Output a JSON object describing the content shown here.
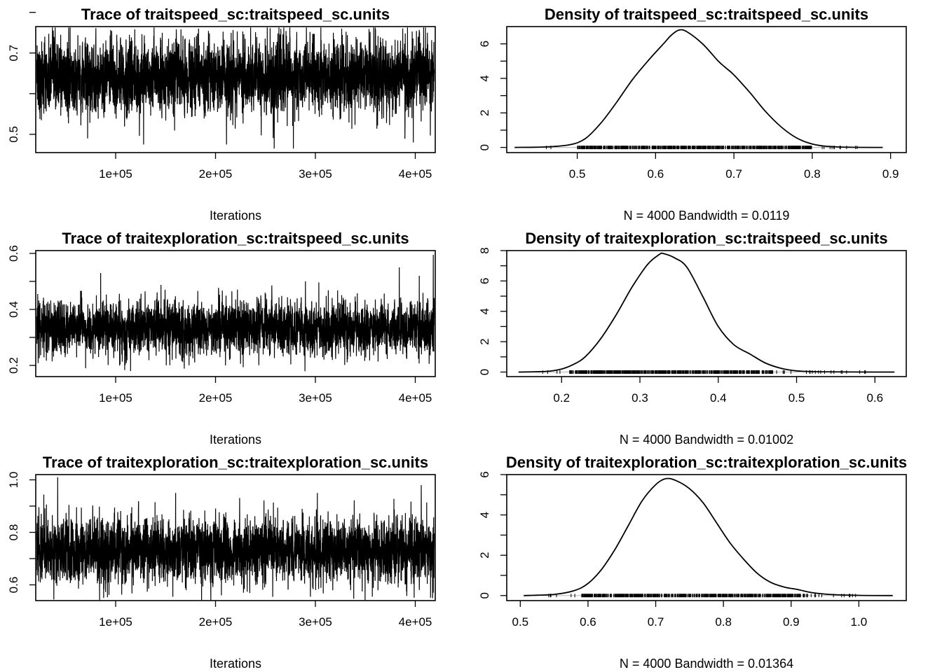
{
  "chart_data": [
    {
      "type": "line",
      "kind": "trace",
      "title": "Trace of traitspeed_sc:traitspeed_sc.units",
      "xlabel": "Iterations",
      "xlim": [
        20000,
        420000
      ],
      "xticks": [
        100000,
        200000,
        300000,
        400000
      ],
      "xtick_labels": [
        "1e+05",
        "2e+05",
        "3e+05",
        "4e+05"
      ],
      "ylim": [
        0.455,
        0.765
      ],
      "yticks": [
        0.5,
        0.6,
        0.7,
        0.8
      ],
      "ytick_labels": [
        "0.5",
        "",
        "0.7",
        ""
      ],
      "samples": 4000,
      "mean": 0.64,
      "sd": 0.045,
      "spikes": [
        {
          "x": 72000,
          "y": 0.49
        },
        {
          "x": 128000,
          "y": 0.475
        },
        {
          "x": 183000,
          "y": 0.76
        },
        {
          "x": 211000,
          "y": 0.475
        },
        {
          "x": 278000,
          "y": 0.465
        },
        {
          "x": 398000,
          "y": 0.48
        },
        {
          "x": 403000,
          "y": 0.74
        },
        {
          "x": 318000,
          "y": 0.75
        },
        {
          "x": 45000,
          "y": 0.745
        }
      ]
    },
    {
      "type": "line",
      "kind": "density",
      "title": "Density of traitspeed_sc:traitspeed_sc.units",
      "xlabel": "N = 4000   Bandwidth = 0.0119",
      "xlim": [
        0.41,
        0.92
      ],
      "xticks": [
        0.5,
        0.6,
        0.7,
        0.8,
        0.9
      ],
      "xtick_labels": [
        "0.5",
        "0.6",
        "0.7",
        "0.8",
        "0.9"
      ],
      "ylim": [
        -0.3,
        7.0
      ],
      "yticks": [
        0,
        1,
        2,
        3,
        4,
        5,
        6
      ],
      "ytick_labels": [
        "0",
        "",
        "2",
        "",
        "4",
        "",
        "6"
      ],
      "x": [
        0.42,
        0.46,
        0.49,
        0.51,
        0.53,
        0.55,
        0.57,
        0.59,
        0.61,
        0.62,
        0.63,
        0.64,
        0.66,
        0.68,
        0.69,
        0.7,
        0.72,
        0.74,
        0.76,
        0.78,
        0.8,
        0.82,
        0.85,
        0.89
      ],
      "y": [
        0.0,
        0.03,
        0.15,
        0.5,
        1.4,
        2.6,
        3.9,
        5.0,
        6.0,
        6.5,
        6.8,
        6.7,
        6.0,
        5.0,
        4.6,
        4.2,
        3.2,
        2.1,
        1.2,
        0.55,
        0.2,
        0.06,
        0.01,
        0.0
      ],
      "rug_range": [
        0.45,
        0.86
      ],
      "rug_dense_range": [
        0.5,
        0.8
      ]
    },
    {
      "type": "line",
      "kind": "trace",
      "title": "Trace of traitexploration_sc:traitspeed_sc.units",
      "xlabel": "Iterations",
      "xlim": [
        20000,
        420000
      ],
      "xticks": [
        100000,
        200000,
        300000,
        400000
      ],
      "xtick_labels": [
        "1e+05",
        "2e+05",
        "3e+05",
        "4e+05"
      ],
      "ylim": [
        0.16,
        0.61
      ],
      "yticks": [
        0.2,
        0.3,
        0.4,
        0.5,
        0.6
      ],
      "ytick_labels": [
        "0.2",
        "",
        "0.4",
        "",
        "0.6"
      ],
      "samples": 4000,
      "mean": 0.335,
      "sd": 0.048,
      "spikes": [
        {
          "x": 115000,
          "y": 0.18
        },
        {
          "x": 418000,
          "y": 0.595
        },
        {
          "x": 384000,
          "y": 0.55
        },
        {
          "x": 85000,
          "y": 0.53
        },
        {
          "x": 70000,
          "y": 0.19
        },
        {
          "x": 210000,
          "y": 0.2
        },
        {
          "x": 404000,
          "y": 0.52
        },
        {
          "x": 290000,
          "y": 0.5
        }
      ]
    },
    {
      "type": "line",
      "kind": "density",
      "title": "Density of traitexploration_sc:traitspeed_sc.units",
      "xlabel": "N = 4000   Bandwidth = 0.01002",
      "xlim": [
        0.13,
        0.64
      ],
      "xticks": [
        0.2,
        0.3,
        0.4,
        0.5,
        0.6
      ],
      "xtick_labels": [
        "0.2",
        "0.3",
        "0.4",
        "0.5",
        "0.6"
      ],
      "ylim": [
        -0.3,
        8.0
      ],
      "yticks": [
        0,
        1,
        2,
        3,
        4,
        5,
        6,
        7,
        8
      ],
      "ytick_labels": [
        "0",
        "",
        "2",
        "",
        "4",
        "",
        "6",
        "",
        "8"
      ],
      "x": [
        0.145,
        0.18,
        0.2,
        0.215,
        0.23,
        0.25,
        0.27,
        0.29,
        0.31,
        0.325,
        0.33,
        0.345,
        0.36,
        0.38,
        0.4,
        0.42,
        0.44,
        0.46,
        0.48,
        0.5,
        0.53,
        0.57,
        0.625
      ],
      "y": [
        0.0,
        0.04,
        0.2,
        0.5,
        1.0,
        2.2,
        3.8,
        5.6,
        7.1,
        7.75,
        7.8,
        7.5,
        6.9,
        5.0,
        3.0,
        1.8,
        1.2,
        0.6,
        0.25,
        0.08,
        0.02,
        0.005,
        0.0
      ],
      "rug_range": [
        0.17,
        0.6
      ],
      "rug_dense_range": [
        0.21,
        0.47
      ]
    },
    {
      "type": "line",
      "kind": "trace",
      "title": "Trace of traitexploration_sc:traitexploration_sc.units",
      "xlabel": "Iterations",
      "xlim": [
        20000,
        420000
      ],
      "xticks": [
        100000,
        200000,
        300000,
        400000
      ],
      "xtick_labels": [
        "1e+05",
        "2e+05",
        "3e+05",
        "4e+05"
      ],
      "ylim": [
        0.54,
        1.02
      ],
      "yticks": [
        0.6,
        0.7,
        0.8,
        0.9,
        1.0
      ],
      "ytick_labels": [
        "0.6",
        "",
        "0.8",
        "",
        "1.0"
      ],
      "samples": 4000,
      "mean": 0.73,
      "sd": 0.06,
      "spikes": [
        {
          "x": 42000,
          "y": 1.01
        },
        {
          "x": 88000,
          "y": 0.55
        },
        {
          "x": 357000,
          "y": 0.555
        },
        {
          "x": 406000,
          "y": 0.98
        },
        {
          "x": 418000,
          "y": 0.57
        },
        {
          "x": 160000,
          "y": 0.95
        },
        {
          "x": 302000,
          "y": 0.95
        },
        {
          "x": 228000,
          "y": 0.57
        }
      ]
    },
    {
      "type": "line",
      "kind": "density",
      "title": "Density of traitexploration_sc:traitexploration_sc.units",
      "xlabel": "N = 4000   Bandwidth = 0.01364",
      "xlim": [
        0.48,
        1.07
      ],
      "xticks": [
        0.5,
        0.6,
        0.7,
        0.8,
        0.9,
        1.0
      ],
      "xtick_labels": [
        "0.5",
        "0.6",
        "0.7",
        "0.8",
        "0.9",
        "1.0"
      ],
      "ylim": [
        -0.25,
        6.0
      ],
      "yticks": [
        0,
        1,
        2,
        3,
        4,
        5,
        6
      ],
      "ytick_labels": [
        "0",
        "",
        "2",
        "",
        "4",
        "",
        "6"
      ],
      "x": [
        0.505,
        0.55,
        0.58,
        0.6,
        0.62,
        0.64,
        0.66,
        0.68,
        0.7,
        0.715,
        0.73,
        0.75,
        0.77,
        0.79,
        0.81,
        0.83,
        0.85,
        0.87,
        0.89,
        0.91,
        0.93,
        0.96,
        1.0,
        1.05
      ],
      "y": [
        0.0,
        0.06,
        0.25,
        0.6,
        1.3,
        2.3,
        3.5,
        4.7,
        5.5,
        5.8,
        5.7,
        5.3,
        4.6,
        3.6,
        2.6,
        1.8,
        1.1,
        0.65,
        0.42,
        0.3,
        0.15,
        0.05,
        0.01,
        0.0
      ],
      "rug_range": [
        0.54,
        1.01
      ],
      "rug_dense_range": [
        0.59,
        0.92
      ]
    }
  ]
}
